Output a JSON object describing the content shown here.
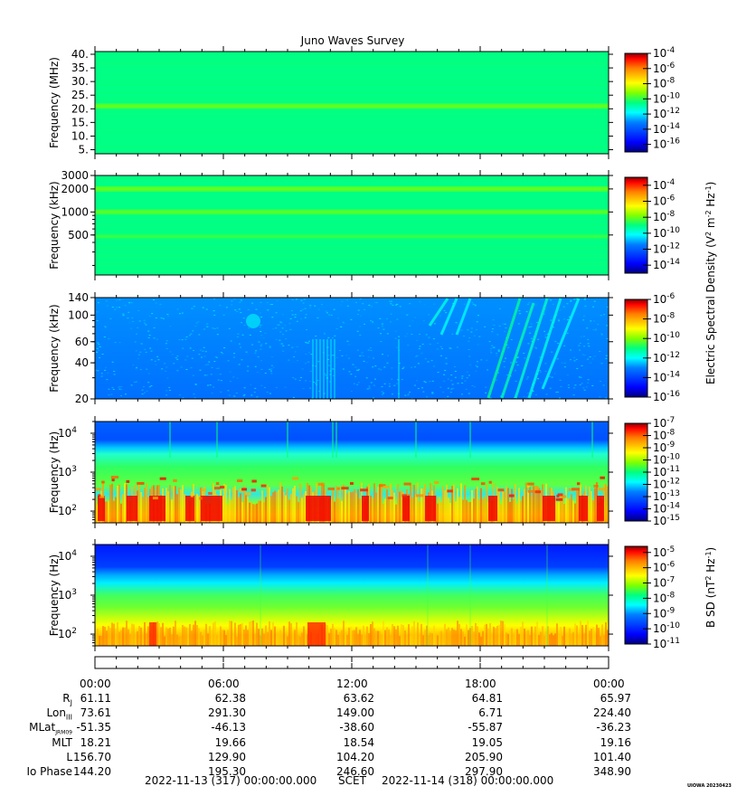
{
  "title": "Juno Waves Survey",
  "colors": {
    "colormap": [
      "#00007f",
      "#0000ff",
      "#007fff",
      "#00ffff",
      "#00ff7f",
      "#7fff00",
      "#ffff00",
      "#ff7f00",
      "#ff0000",
      "#7f0000"
    ]
  },
  "chart_data": [
    {
      "type": "heatmap",
      "name": "panel-1",
      "ylabel": "Frequency (MHz)",
      "yscale": "linear",
      "ylim": [
        3.5,
        41
      ],
      "yticks": [
        "40.",
        "35.",
        "30.",
        "25.",
        "20.",
        "15.",
        "10.",
        "5."
      ],
      "ytick_values": [
        40,
        35,
        30,
        25,
        20,
        15,
        10,
        5
      ],
      "background_level": 0.44,
      "bands": [
        {
          "y": 21,
          "level": 0.5
        }
      ],
      "colorbar": {
        "ticks": [
          "-4",
          "-6",
          "-8",
          "-10",
          "-12",
          "-14",
          "-16"
        ],
        "base": "10",
        "range": [
          -17,
          -4
        ]
      }
    },
    {
      "type": "heatmap",
      "name": "panel-2",
      "ylabel": "Frequency (kHz)",
      "yscale": "log",
      "ylim": [
        150,
        3000
      ],
      "yticks": [
        "3000",
        "2000",
        "1000",
        "500"
      ],
      "ytick_values": [
        3000,
        2000,
        1000,
        500
      ],
      "background_level": 0.44,
      "bands": [
        {
          "y": 2000,
          "level": 0.5
        },
        {
          "y": 1000,
          "level": 0.49
        },
        {
          "y": 480,
          "level": 0.46
        }
      ],
      "colorbar": {
        "ticks": [
          "-4",
          "-6",
          "-8",
          "-10",
          "-12",
          "-14"
        ],
        "base": "10",
        "range": [
          -15,
          -3
        ]
      }
    },
    {
      "type": "heatmap",
      "name": "panel-3",
      "ylabel": "Frequency (kHz)",
      "yscale": "log",
      "ylim": [
        20,
        140
      ],
      "yticks": [
        "140",
        "100",
        "60",
        "40",
        "20"
      ],
      "ytick_values": [
        140,
        100,
        60,
        40,
        20
      ],
      "background_level": 0.27,
      "colorbar": {
        "ticks": [
          "-6",
          "-8",
          "-10",
          "-12",
          "-14",
          "-16"
        ],
        "base": "10",
        "range": [
          -16,
          -6
        ]
      }
    },
    {
      "type": "heatmap",
      "name": "panel-4",
      "ylabel": "Frequency (Hz)",
      "yscale": "log",
      "ylim": [
        50,
        20000
      ],
      "yticks": [
        "10",
        "10",
        "10"
      ],
      "ytick_exponents": [
        "4",
        "3",
        "2"
      ],
      "ytick_values": [
        10000,
        1000,
        100
      ],
      "colorbar": {
        "ticks": [
          "-7",
          "-8",
          "-9",
          "-10",
          "-11",
          "-12",
          "-13",
          "-14",
          "-15"
        ],
        "base": "10",
        "range": [
          -15,
          -7
        ]
      }
    },
    {
      "type": "heatmap",
      "name": "panel-5",
      "ylabel": "Frequency (Hz)",
      "yscale": "log",
      "ylim": [
        50,
        20000
      ],
      "yticks": [
        "10",
        "10",
        "10"
      ],
      "ytick_exponents": [
        "4",
        "3",
        "2"
      ],
      "ytick_values": [
        10000,
        1000,
        100
      ],
      "colorbar": {
        "ticks": [
          "-5",
          "-6",
          "-7",
          "-8",
          "-9",
          "-10",
          "-11"
        ],
        "base": "10",
        "range": [
          -11,
          -4.6
        ]
      }
    }
  ],
  "colorbar_labels": {
    "electric": "Electric Spectral Density (V",
    "electric_sup1": "2",
    "electric_mid": " m",
    "electric_sup2": "-2",
    "electric_mid2": " Hz",
    "electric_sup3": "-1",
    "electric_end": ")",
    "magnetic": "B SD (nT",
    "magnetic_sup1": "2",
    "magnetic_mid": " Hz",
    "magnetic_sup2": "-1",
    "magnetic_end": ")"
  },
  "time_axis": {
    "labels": [
      "00:00",
      "06:00",
      "12:00",
      "18:00",
      "00:00"
    ],
    "hours": [
      0,
      6,
      12,
      18,
      24
    ]
  },
  "ephemeris": {
    "rows": [
      {
        "label": "R",
        "sub": "J",
        "values": [
          "61.11",
          "62.38",
          "63.62",
          "64.81",
          "65.97"
        ]
      },
      {
        "label": "Lon",
        "sub": "III",
        "values": [
          "73.61",
          "291.30",
          "149.00",
          "6.71",
          "224.40"
        ]
      },
      {
        "label": "MLat",
        "sub": "JRM09",
        "values": [
          "-51.35",
          "-46.13",
          "-38.60",
          "-55.87",
          "-36.23"
        ]
      },
      {
        "label": "MLT",
        "sub": "",
        "values": [
          "18.21",
          "19.66",
          "18.54",
          "19.05",
          "19.16"
        ]
      },
      {
        "label": "L",
        "sub": "",
        "values": [
          "156.70",
          "129.90",
          "104.20",
          "205.90",
          "101.40"
        ]
      },
      {
        "label": "Io Phase",
        "sub": "",
        "values": [
          "144.20",
          "195.30",
          "246.60",
          "297.90",
          "348.90"
        ]
      }
    ]
  },
  "footer": {
    "start": "2022-11-13 (317) 00:00:00.000",
    "scet": "SCET",
    "end": "2022-11-14 (318) 00:00:00.000"
  },
  "stamp": "UIOWA 20230423"
}
